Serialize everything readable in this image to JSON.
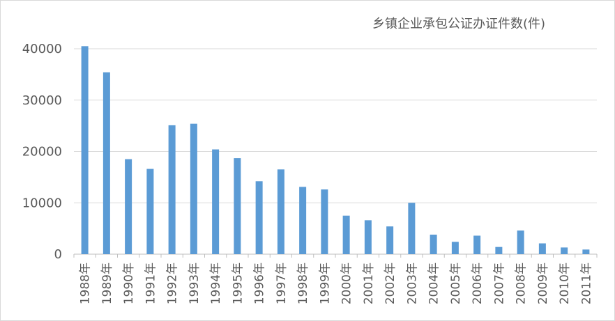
{
  "chart_data": {
    "type": "bar",
    "title": "乡镇企业承包公证办证件数(件)",
    "categories": [
      "1988年",
      "1989年",
      "1990年",
      "1991年",
      "1992年",
      "1993年",
      "1994年",
      "1995年",
      "1996年",
      "1997年",
      "1998年",
      "1999年",
      "2000年",
      "2001年",
      "2002年",
      "2003年",
      "2004年",
      "2005年",
      "2006年",
      "2007年",
      "2008年",
      "2009年",
      "2010年",
      "2011年"
    ],
    "values": [
      40500,
      35400,
      18500,
      16600,
      25100,
      25400,
      20400,
      18700,
      14200,
      16500,
      13100,
      12600,
      7500,
      6600,
      5400,
      10000,
      3800,
      2400,
      3600,
      1400,
      4600,
      2100,
      1300,
      900
    ],
    "ylim": [
      0,
      40000
    ],
    "yticks": [
      "0",
      "10000",
      "20000",
      "30000",
      "40000"
    ],
    "xlabel": "",
    "ylabel": "",
    "grid": true,
    "legend": "none",
    "bar_color": "#5b9bd5",
    "grid_color": "#d9d9d9"
  }
}
